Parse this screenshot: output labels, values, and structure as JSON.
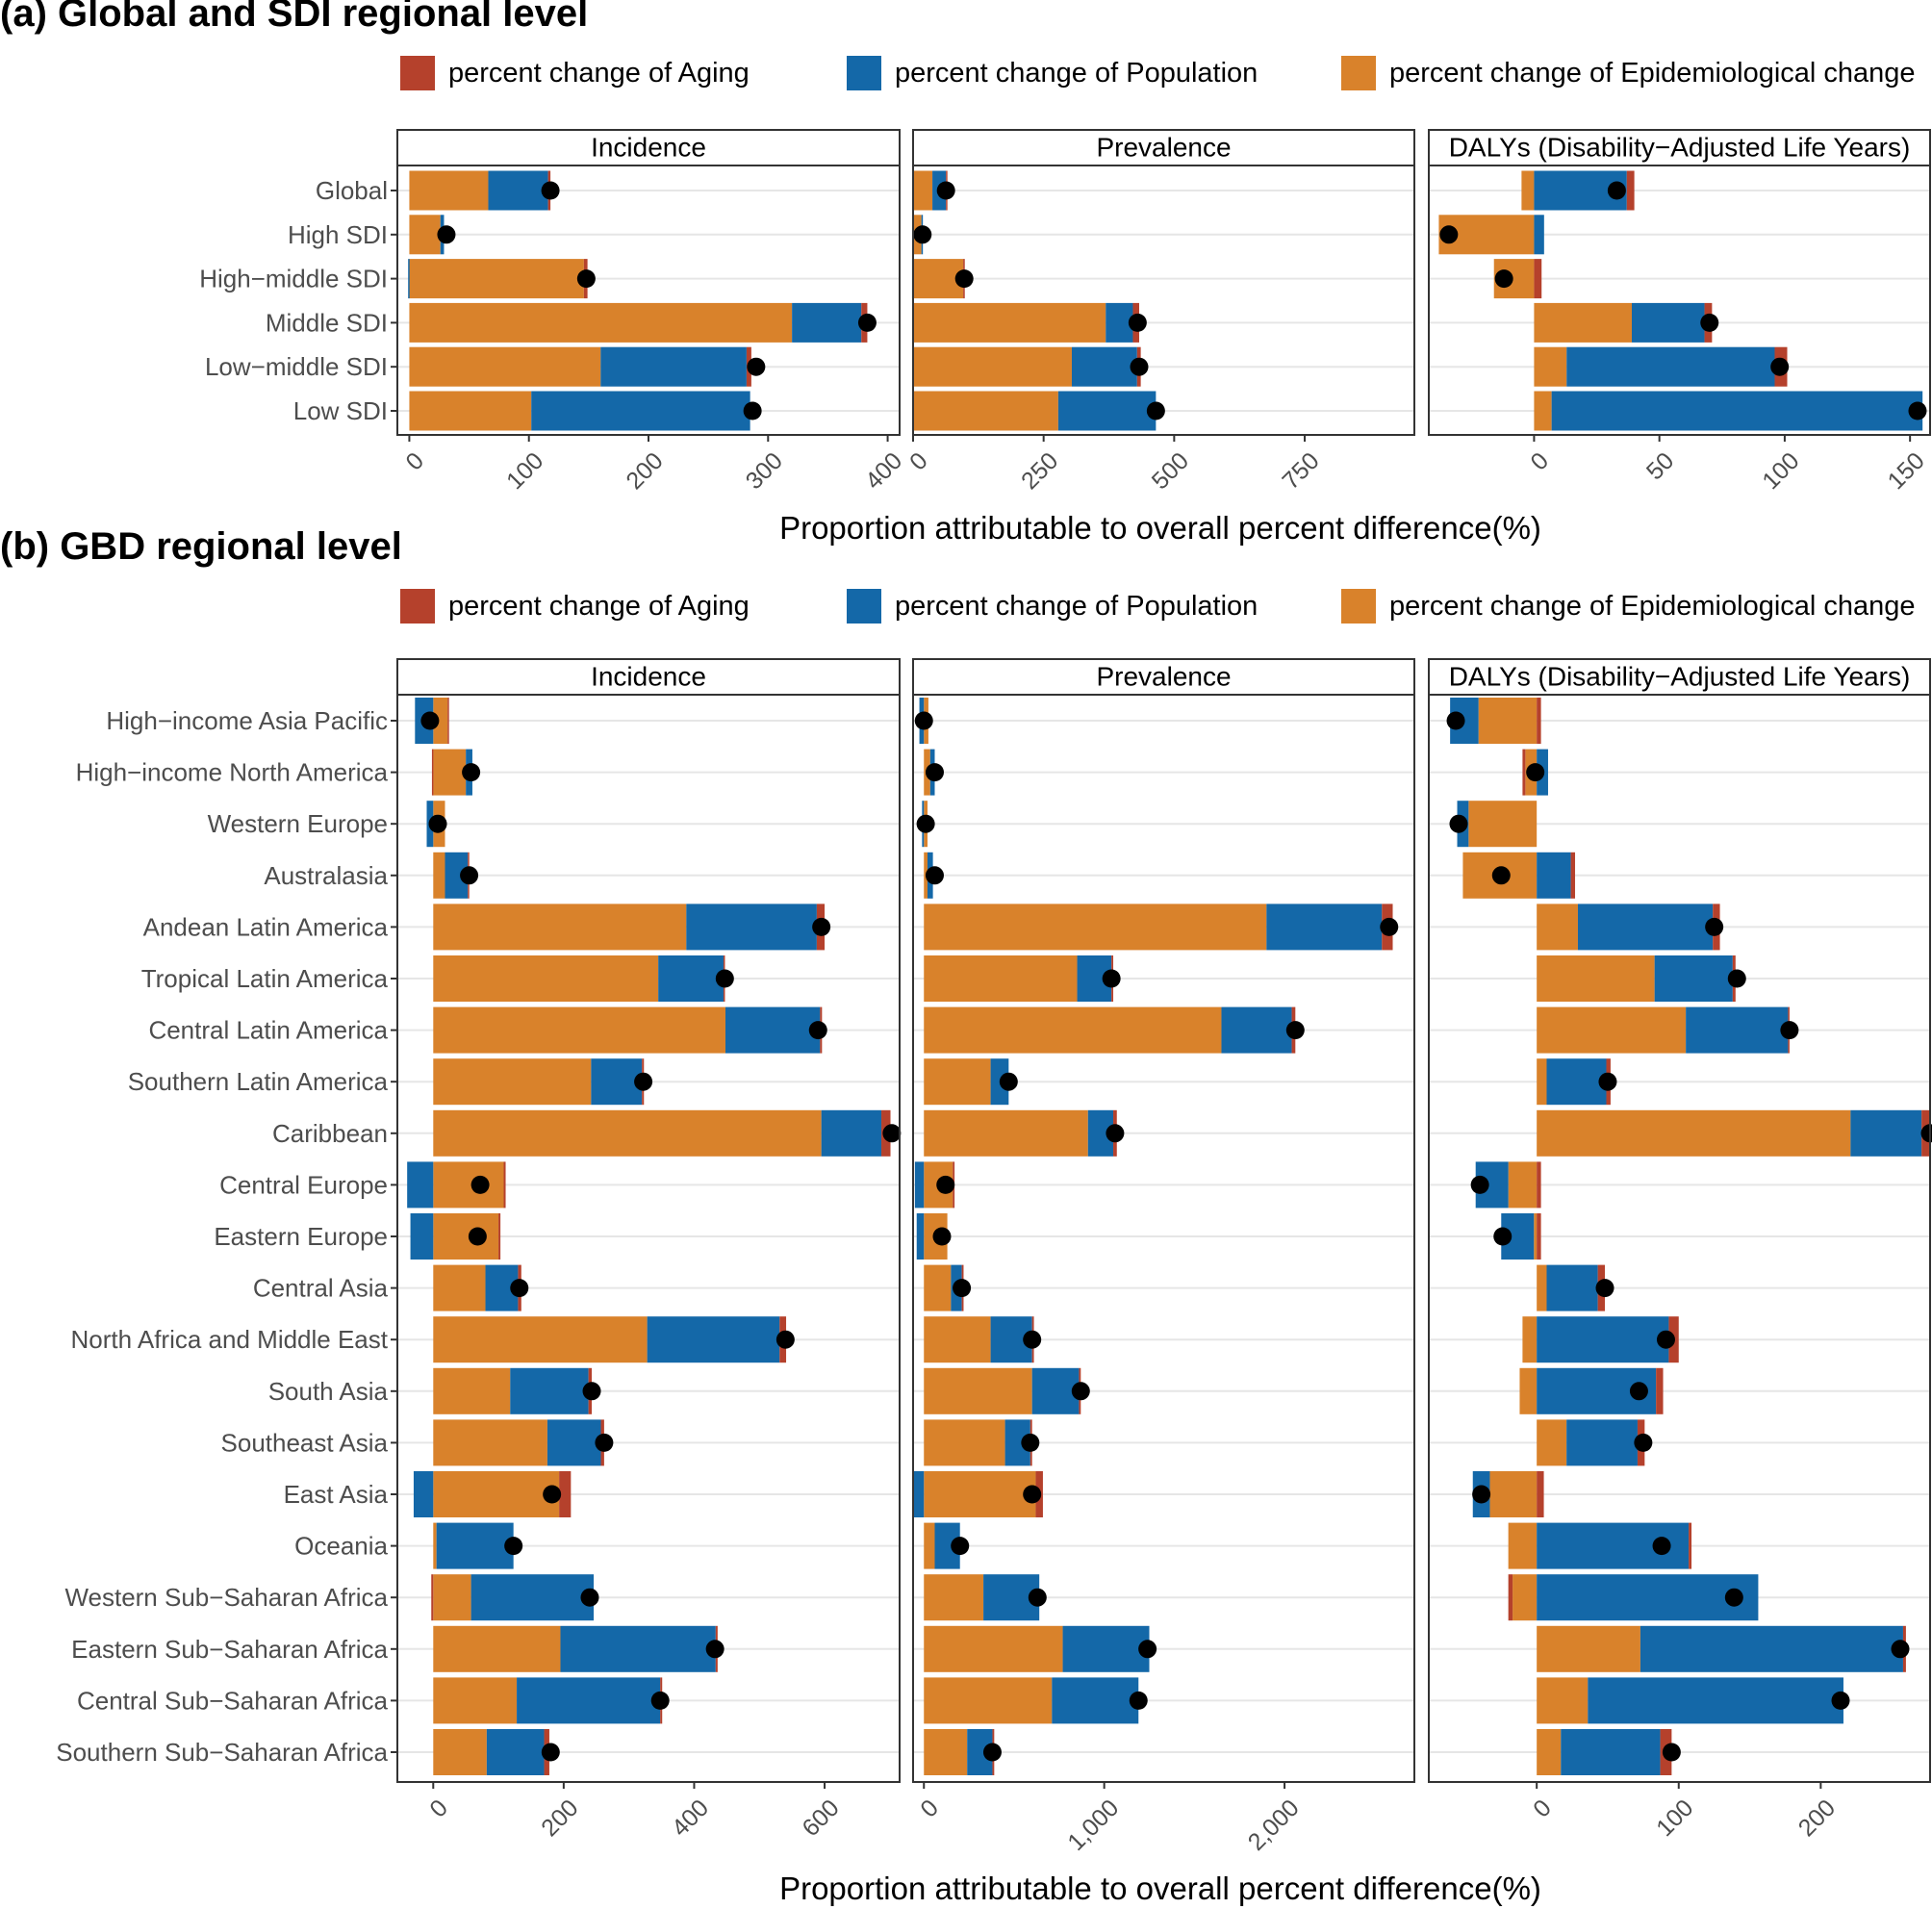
{
  "colors": {
    "aging": "#B5412C",
    "population": "#1468A8",
    "epidemiological": "#D9822B",
    "point": "#000000",
    "grid": "#E6E6E6",
    "strip_bg": "#FFFFFF"
  },
  "legend": {
    "aging": "percent change of Aging",
    "population": "percent change of Population",
    "epidemiological": "percent change of Epidemiological change"
  },
  "panel_a": {
    "title": "(a) Global and SDI regional level",
    "xlabel": "Proportion attributable to overall percent difference(%)"
  },
  "panel_b": {
    "title": "(b) GBD regional level",
    "xlabel": "Proportion attributable to overall percent difference(%)"
  },
  "chart_data": [
    {
      "type": "bar",
      "stacked": true,
      "orientation": "horizontal",
      "title": "(a) Global and SDI regional level",
      "xlabel": "Proportion attributable to overall percent difference(%)",
      "categories": [
        "Global",
        "High SDI",
        "High−middle SDI",
        "Middle SDI",
        "Low−middle SDI",
        "Low SDI"
      ],
      "facets": [
        {
          "name": "Incidence",
          "xlim": [
            -10,
            410
          ],
          "ticks": [
            0,
            100,
            200,
            300,
            400
          ],
          "tick_labels": [
            "0",
            "100",
            "200",
            "300",
            "400"
          ],
          "series": [
            {
              "name": "percent change of Aging",
              "values": [
                2,
                0,
                3,
                5,
                4,
                0
              ]
            },
            {
              "name": "percent change of Population",
              "values": [
                50,
                3,
                -1,
                58,
                122,
                183
              ]
            },
            {
              "name": "percent change of Epidemiological change",
              "values": [
                66,
                26,
                146,
                320,
                160,
                102
              ]
            }
          ],
          "totals": [
            118,
            31,
            148,
            383,
            290,
            287
          ]
        },
        {
          "name": "Prevalence",
          "xlim": [
            0,
            960
          ],
          "ticks": [
            0,
            250,
            500,
            750
          ],
          "tick_labels": [
            "0",
            "250",
            "500",
            "750"
          ],
          "series": [
            {
              "name": "percent change of Aging",
              "values": [
                2,
                0,
                3,
                12,
                7,
                0
              ]
            },
            {
              "name": "percent change of Population",
              "values": [
                26,
                2,
                -2,
                52,
                125,
                187
              ]
            },
            {
              "name": "percent change of Epidemiological change",
              "values": [
                37,
                16,
                96,
                369,
                304,
                278
              ]
            }
          ],
          "totals": [
            63,
            18,
            98,
            430,
            433,
            465
          ]
        },
        {
          "name": "DALYs (Disability−Adjusted Life Years)",
          "xlim": [
            -42,
            158
          ],
          "ticks": [
            0,
            50,
            100,
            150
          ],
          "tick_labels": [
            "0",
            "50",
            "100",
            "150"
          ],
          "series": [
            {
              "name": "percent change of Aging",
              "values": [
                3,
                0,
                3,
                3,
                5,
                0
              ]
            },
            {
              "name": "percent change of Population",
              "values": [
                37,
                4,
                0,
                29,
                83,
                148
              ]
            },
            {
              "name": "percent change of Epidemiological change",
              "values": [
                -5,
                -38,
                -16,
                39,
                13,
                7
              ]
            }
          ],
          "totals": [
            33,
            -34,
            -12,
            70,
            98,
            153
          ]
        }
      ]
    },
    {
      "type": "bar",
      "stacked": true,
      "orientation": "horizontal",
      "title": "(b) GBD regional level",
      "xlabel": "Proportion attributable to overall percent difference(%)",
      "categories": [
        "High−income Asia Pacific",
        "High−income North America",
        "Western Europe",
        "Australasia",
        "Andean Latin America",
        "Tropical Latin America",
        "Central Latin America",
        "Southern Latin America",
        "Caribbean",
        "Central Europe",
        "Eastern Europe",
        "Central Asia",
        "North Africa and Middle East",
        "South Asia",
        "Southeast Asia",
        "East Asia",
        "Oceania",
        "Western Sub−Saharan Africa",
        "Eastern Sub−Saharan Africa",
        "Central Sub−Saharan Africa",
        "Southern Sub−Saharan Africa"
      ],
      "facets": [
        {
          "name": "Incidence",
          "xlim": [
            -55,
            715
          ],
          "ticks": [
            0,
            200,
            400,
            600
          ],
          "tick_labels": [
            "0",
            "200",
            "400",
            "600"
          ],
          "series": [
            {
              "name": "percent change of Aging",
              "values": [
                2,
                -2,
                0,
                1,
                12,
                2,
                3,
                3,
                14,
                3,
                3,
                5,
                10,
                5,
                5,
                18,
                0,
                -3,
                3,
                3,
                8
              ]
            },
            {
              "name": "percent change of Population",
              "values": [
                -28,
                10,
                -10,
                35,
                200,
                100,
                145,
                78,
                92,
                -40,
                -35,
                50,
                203,
                120,
                82,
                -30,
                118,
                188,
                238,
                220,
                88
              ]
            },
            {
              "name": "percent change of Epidemiological change",
              "values": [
                22,
                50,
                18,
                18,
                388,
                345,
                448,
                242,
                595,
                108,
                100,
                80,
                328,
                118,
                175,
                193,
                5,
                58,
                195,
                128,
                82
              ]
            }
          ],
          "totals": [
            -5,
            58,
            7,
            55,
            595,
            447,
            590,
            322,
            703,
            72,
            68,
            132,
            540,
            243,
            262,
            182,
            123,
            240,
            432,
            348,
            180
          ]
        },
        {
          "name": "Prevalence",
          "xlim": [
            -60,
            2720
          ],
          "ticks": [
            0,
            1000,
            2000
          ],
          "tick_labels": [
            "0",
            "1,000",
            "2,000"
          ],
          "series": [
            {
              "name": "percent change of Aging",
              "values": [
                0,
                0,
                0,
                0,
                60,
                10,
                20,
                0,
                20,
                10,
                0,
                10,
                10,
                10,
                10,
                40,
                0,
                0,
                0,
                0,
                10
              ]
            },
            {
              "name": "percent change of Population",
              "values": [
                -25,
                25,
                -10,
                30,
                640,
                190,
                390,
                100,
                140,
                -50,
                -40,
                60,
                230,
                260,
                140,
                -60,
                140,
                310,
                480,
                480,
                140
              ]
            },
            {
              "name": "percent change of Epidemiological change",
              "values": [
                25,
                35,
                20,
                20,
                1900,
                850,
                1650,
                370,
                910,
                160,
                130,
                150,
                370,
                600,
                450,
                620,
                60,
                330,
                770,
                710,
                240
              ]
            }
          ],
          "totals": [
            0,
            60,
            10,
            60,
            2580,
            1040,
            2060,
            470,
            1060,
            120,
            100,
            210,
            600,
            870,
            590,
            600,
            200,
            630,
            1240,
            1190,
            380
          ]
        },
        {
          "name": "DALYs (Disability−Adjusted Life Years)",
          "xlim": [
            -76,
            277
          ],
          "ticks": [
            0,
            100,
            200
          ],
          "tick_labels": [
            "0",
            "100",
            "200"
          ],
          "series": [
            {
              "name": "percent change of Aging",
              "values": [
                3,
                -2,
                0,
                3,
                5,
                2,
                1,
                3,
                6,
                3,
                3,
                5,
                7,
                5,
                5,
                5,
                2,
                -3,
                2,
                0,
                8
              ]
            },
            {
              "name": "percent change of Population",
              "values": [
                -20,
                8,
                -8,
                24,
                95,
                55,
                72,
                42,
                50,
                -23,
                -23,
                36,
                93,
                84,
                50,
                -12,
                107,
                156,
                185,
                180,
                70
              ]
            },
            {
              "name": "percent change of Epidemiological change",
              "values": [
                -41,
                -8,
                -48,
                -52,
                29,
                83,
                105,
                7,
                221,
                -20,
                -2,
                7,
                -10,
                -12,
                21,
                -33,
                -20,
                -17,
                73,
                36,
                17
              ]
            }
          ],
          "totals": [
            -57,
            -1,
            -55,
            -25,
            125,
            141,
            178,
            50,
            277,
            -40,
            -24,
            48,
            91,
            72,
            75,
            -39,
            88,
            139,
            256,
            214,
            95
          ]
        }
      ]
    }
  ]
}
